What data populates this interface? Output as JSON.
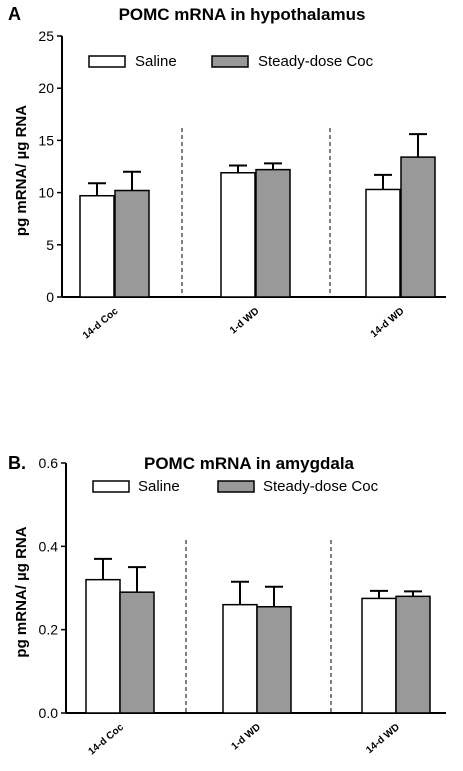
{
  "chart_data": [
    {
      "type": "bar",
      "panel": "A",
      "title": "POMC mRNA in hypothalamus",
      "ylabel": "pg mRNA/ µg RNA",
      "ylim": [
        0,
        25
      ],
      "yticks": [
        0,
        5,
        10,
        15,
        20,
        25
      ],
      "ytick_labels": [
        "0",
        "5",
        "10",
        "15",
        "20",
        "25"
      ],
      "categories": [
        "14-d Coc",
        "1-d WD",
        "14-d WD"
      ],
      "series": [
        {
          "name": "Saline",
          "color": "#ffffff",
          "values": [
            9.7,
            11.9,
            10.3
          ],
          "errors": [
            1.2,
            0.7,
            1.4
          ]
        },
        {
          "name": "Steady-dose Coc",
          "color": "#999999",
          "values": [
            10.2,
            12.2,
            13.4
          ],
          "errors": [
            1.8,
            0.6,
            2.2
          ]
        }
      ],
      "legend": "top",
      "grid": false
    },
    {
      "type": "bar",
      "panel": "B.",
      "title": "POMC mRNA in amygdala",
      "ylabel": "pg mRNA/ µg RNA",
      "ylim": [
        0,
        0.6
      ],
      "yticks": [
        0,
        0.2,
        0.4,
        0.6
      ],
      "ytick_labels": [
        "0.0",
        "0.2",
        "0.4",
        "0.6"
      ],
      "categories": [
        "14-d Coc",
        "1-d WD",
        "14-d WD"
      ],
      "series": [
        {
          "name": "Saline",
          "color": "#ffffff",
          "values": [
            0.32,
            0.26,
            0.275
          ],
          "errors": [
            0.05,
            0.055,
            0.018
          ]
        },
        {
          "name": "Steady-dose Coc",
          "color": "#999999",
          "values": [
            0.29,
            0.255,
            0.28
          ],
          "errors": [
            0.06,
            0.048,
            0.012
          ]
        }
      ],
      "legend": "top",
      "grid": false
    }
  ]
}
